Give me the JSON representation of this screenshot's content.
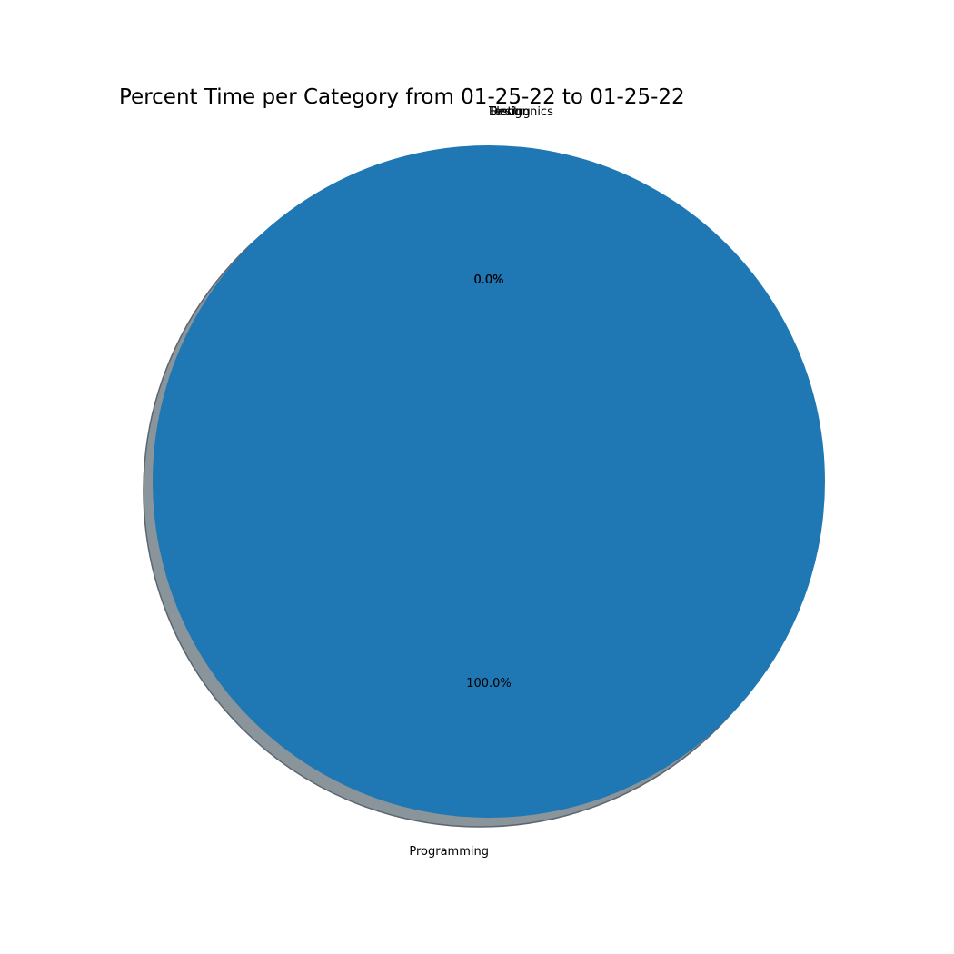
{
  "chart_data": {
    "type": "pie",
    "title": "Percent Time per Category from 01-25-22 to 01-25-22",
    "shadow": true,
    "slices": [
      {
        "label": "Programming",
        "value": 100.0,
        "pct_label": "100.0%",
        "color": "#1f77b4"
      },
      {
        "label": "Electronics",
        "value": 0.0,
        "pct_label": "0.0%",
        "color": "#ff7f0e"
      },
      {
        "label": "Design",
        "value": 0.0,
        "pct_label": "0.0%",
        "color": "#2ca02c"
      },
      {
        "label": "Testing",
        "value": 0.0,
        "pct_label": "0.0%",
        "color": "#d62728"
      }
    ]
  }
}
